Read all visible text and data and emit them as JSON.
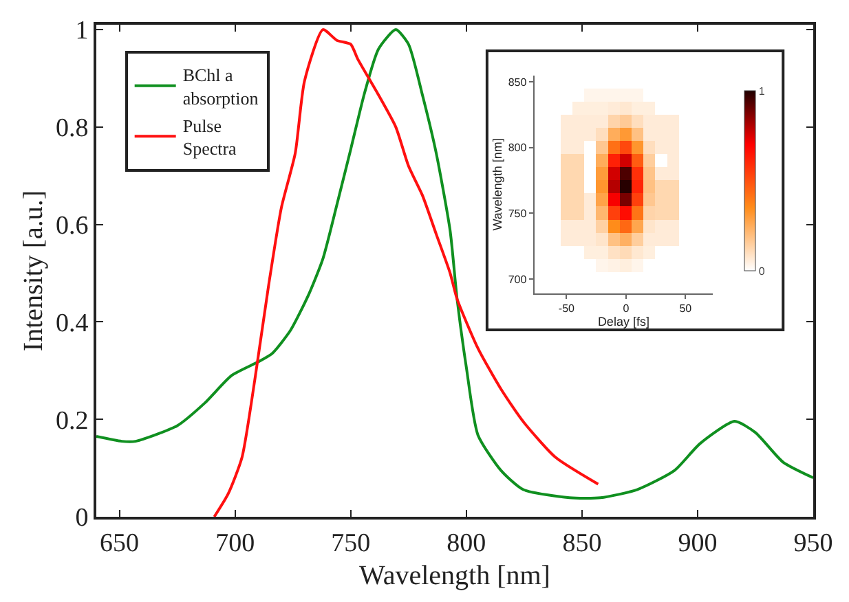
{
  "chart_data": [
    {
      "type": "line",
      "xlabel": "Wavelength [nm]",
      "ylabel": "Intensity [a.u.]",
      "xlim": [
        640,
        950
      ],
      "ylim": [
        0,
        1.01
      ],
      "xticks": [
        650,
        700,
        750,
        800,
        850,
        900,
        950
      ],
      "yticks": [
        0,
        0.2,
        0.4,
        0.6,
        0.8,
        1
      ],
      "grid": false,
      "legend": "top left",
      "marker": "none",
      "line_style": "solid",
      "series": [
        {
          "name": "BChl a absorption",
          "color": "#109020",
          "x": [
            640,
            651,
            657,
            675,
            687,
            698.5,
            710,
            716,
            724,
            732,
            738,
            744,
            750,
            756,
            762,
            769.5,
            775,
            781,
            787,
            793,
            796,
            800,
            805,
            815,
            824.5,
            844.6,
            858,
            874,
            890,
            901,
            916,
            925,
            937,
            950
          ],
          "values": [
            0.165,
            0.155,
            0.155,
            0.187,
            0.234,
            0.29,
            0.318,
            0.335,
            0.383,
            0.458,
            0.53,
            0.64,
            0.754,
            0.87,
            0.96,
            1.0,
            0.97,
            0.866,
            0.746,
            0.587,
            0.447,
            0.307,
            0.168,
            0.095,
            0.056,
            0.039,
            0.039,
            0.056,
            0.095,
            0.15,
            0.196,
            0.173,
            0.112,
            0.08
          ]
        },
        {
          "name": "Pulse Spectra",
          "color": "#ff1010",
          "x": [
            691,
            697,
            703,
            708.5,
            714.5,
            720,
            726,
            730,
            738,
            744,
            750,
            753,
            762,
            769.5,
            775,
            781,
            787,
            793,
            796,
            805,
            815,
            824.5,
            838.6,
            857
          ],
          "values": [
            0,
            0.047,
            0.122,
            0.28,
            0.475,
            0.634,
            0.746,
            0.894,
            1.0,
            0.978,
            0.97,
            0.94,
            0.866,
            0.8,
            0.72,
            0.66,
            0.58,
            0.5,
            0.447,
            0.346,
            0.262,
            0.196,
            0.122,
            0.067
          ]
        }
      ]
    },
    {
      "type": "heatmap",
      "xlabel": "Delay [fs]",
      "ylabel": "Wavelength [nm]",
      "xlim": [
        -77,
        73
      ],
      "ylim": [
        689,
        855
      ],
      "xticks": [
        -50,
        0,
        50
      ],
      "yticks": [
        700,
        750,
        800,
        850
      ],
      "clim": [
        0,
        1
      ],
      "cticks": [
        0,
        1
      ],
      "x": [
        -60,
        -50,
        -40,
        -30,
        -20,
        -10,
        0,
        10,
        20,
        30,
        40,
        50,
        60
      ],
      "y": [
        840,
        830,
        820,
        810,
        800,
        790,
        780,
        770,
        760,
        750,
        740,
        730,
        720,
        710,
        700
      ],
      "cells": [
        [
          0,
          0,
          0,
          0.03,
          0.03,
          0.03,
          0.03,
          0.03,
          0,
          0,
          0,
          0,
          0
        ],
        [
          0,
          0,
          0.05,
          0.05,
          0.05,
          0.06,
          0.07,
          0.05,
          0.05,
          0,
          0,
          0,
          0
        ],
        [
          0,
          0.06,
          0.06,
          0.06,
          0.06,
          0.13,
          0.16,
          0.1,
          0.06,
          0.06,
          0.06,
          0,
          0
        ],
        [
          0,
          0.06,
          0.06,
          0.06,
          0.1,
          0.25,
          0.31,
          0.19,
          0.06,
          0.06,
          0.06,
          0,
          0
        ],
        [
          0,
          0.06,
          0.06,
          0,
          0.17,
          0.42,
          0.52,
          0.32,
          0.1,
          0.06,
          0.06,
          0,
          0
        ],
        [
          0,
          0.12,
          0.12,
          0,
          0.25,
          0.62,
          0.76,
          0.47,
          0.15,
          0,
          0.06,
          0,
          0
        ],
        [
          0,
          0.12,
          0.12,
          0,
          0.3,
          0.76,
          0.94,
          0.58,
          0.18,
          0.06,
          0.06,
          0,
          0
        ],
        [
          0,
          0.12,
          0.12,
          0,
          0.32,
          0.8,
          0.99,
          0.61,
          0.19,
          0.12,
          0.12,
          0,
          0
        ],
        [
          0,
          0.12,
          0.12,
          0.06,
          0.28,
          0.71,
          0.88,
          0.54,
          0.17,
          0.12,
          0.12,
          0,
          0
        ],
        [
          0,
          0.12,
          0.12,
          0.06,
          0.22,
          0.54,
          0.67,
          0.41,
          0.13,
          0.12,
          0.12,
          0,
          0
        ],
        [
          0,
          0.06,
          0.06,
          0.06,
          0.14,
          0.35,
          0.44,
          0.27,
          0.08,
          0.06,
          0.06,
          0,
          0
        ],
        [
          0,
          0.06,
          0.06,
          0.06,
          0.08,
          0.19,
          0.24,
          0.15,
          0.06,
          0.06,
          0.06,
          0,
          0
        ],
        [
          0,
          0,
          0,
          0.05,
          0.05,
          0.09,
          0.11,
          0.07,
          0.05,
          0,
          0,
          0,
          0
        ],
        [
          0,
          0,
          0,
          0,
          0.03,
          0.04,
          0.05,
          0.03,
          0,
          0,
          0,
          0,
          0
        ],
        [
          0,
          0,
          0,
          0,
          0,
          0,
          0,
          0,
          0,
          0,
          0,
          0,
          0
        ]
      ]
    }
  ]
}
